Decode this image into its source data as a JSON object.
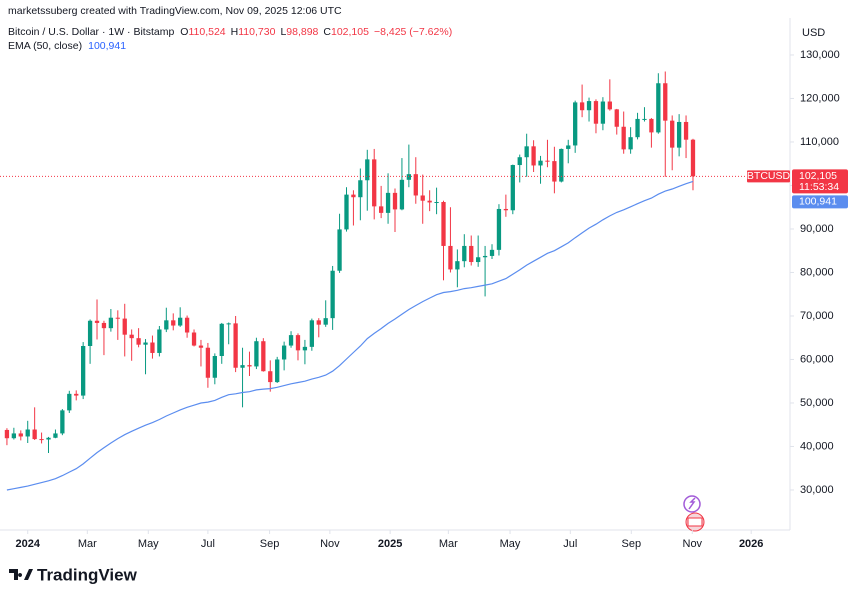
{
  "header": {
    "credit": "marketssuberg created with TradingView.com, Nov 09, 2025 12:06 UTC",
    "symbol": "Bitcoin / U.S. Dollar · 1W · Bitstamp",
    "ohlc": [
      {
        "key": "O",
        "label": "110,524"
      },
      {
        "key": "H",
        "label": "110,730"
      },
      {
        "key": "L",
        "label": "98,898"
      },
      {
        "key": "C",
        "label": "102,105"
      }
    ],
    "change": "−8,425 (−7.62%)",
    "indicator": "EMA (50, close)",
    "indicator_value": "100,941"
  },
  "logo": "TradingView",
  "chart_data": {
    "type": "candlestick",
    "currency": "USD",
    "ticker": "BTCUSD",
    "countdown": "11:53:34",
    "up_color": "#089981",
    "down_color": "#f23645",
    "grid": false,
    "xlim": [
      -1,
      113
    ],
    "xticks": [
      {
        "value": 3,
        "label": "2024"
      },
      {
        "value": 11.6,
        "label": "Mar"
      },
      {
        "value": 20.4,
        "label": "May"
      },
      {
        "value": 29,
        "label": "Jul"
      },
      {
        "value": 37.9,
        "label": "Sep"
      },
      {
        "value": 46.6,
        "label": "Nov"
      },
      {
        "value": 55.3,
        "label": "2025"
      },
      {
        "value": 63.7,
        "label": "Mar"
      },
      {
        "value": 72.6,
        "label": "May"
      },
      {
        "value": 81.3,
        "label": "Jul"
      },
      {
        "value": 90.1,
        "label": "Sep"
      },
      {
        "value": 98.9,
        "label": "Nov"
      },
      {
        "value": 107.4,
        "label": "2026"
      }
    ],
    "ylim": [
      20800,
      138500
    ],
    "yticks": [
      {
        "value": 30000,
        "label": "30,000"
      },
      {
        "value": 40000,
        "label": "40,000"
      },
      {
        "value": 50000,
        "label": "50,000"
      },
      {
        "value": 60000,
        "label": "60,000"
      },
      {
        "value": 70000,
        "label": "70,000"
      },
      {
        "value": 80000,
        "label": "80,000"
      },
      {
        "value": 90000,
        "label": "90,000"
      },
      {
        "value": 100000,
        "label": "100,000"
      },
      {
        "value": 110000,
        "label": "110,000"
      },
      {
        "value": 120000,
        "label": "120,000"
      },
      {
        "value": 130000,
        "label": "130,000"
      }
    ],
    "open": [
      43800,
      41900,
      43000,
      42300,
      43900,
      41700,
      41600,
      42000,
      43000,
      48300,
      52100,
      51700,
      63100,
      68900,
      68400,
      67200,
      69600,
      69400,
      65700,
      64900,
      63400,
      63900,
      61500,
      66900,
      69000,
      67800,
      69600,
      66200,
      63200,
      62700,
      55800,
      60800,
      68200,
      68300,
      58100,
      58700,
      58400,
      64200,
      57300,
      54800,
      60000,
      63200,
      65600,
      62100,
      62900,
      69000,
      68000,
      69500,
      80400,
      89900,
      97900,
      97300,
      101200,
      106000,
      95200,
      93700,
      98300,
      94500,
      101300,
      102600,
      97700,
      96500,
      96100,
      96200,
      86100,
      80700,
      82600,
      86100,
      82400,
      83500,
      83800,
      85200,
      94600,
      94300,
      104700,
      106500,
      109000,
      104600,
      105700,
      105600,
      100900,
      108400,
      109200,
      119100,
      117300,
      119400,
      114200,
      119300,
      117500,
      113500,
      108300,
      111100,
      115300,
      115300,
      112200,
      123500,
      114900,
      108700,
      114600,
      110524
    ],
    "high": [
      44200,
      44300,
      43700,
      45900,
      49000,
      43200,
      42200,
      43900,
      48600,
      52800,
      52900,
      64000,
      69200,
      73800,
      68900,
      71600,
      71300,
      72800,
      66900,
      67200,
      64700,
      65500,
      67700,
      71900,
      70600,
      72000,
      70100,
      66900,
      64500,
      63800,
      61400,
      68400,
      68500,
      70000,
      62700,
      61800,
      65000,
      64900,
      59800,
      60600,
      64100,
      66500,
      66000,
      64500,
      69400,
      69500,
      73600,
      81500,
      93500,
      99600,
      98900,
      103900,
      108200,
      108400,
      99900,
      102800,
      99300,
      106300,
      109400,
      106500,
      102500,
      98900,
      99500,
      96500,
      95000,
      85300,
      88800,
      88500,
      88500,
      86100,
      86500,
      95700,
      97900,
      104800,
      107100,
      111900,
      110400,
      106800,
      110500,
      108900,
      108500,
      110500,
      119500,
      123200,
      120200,
      119800,
      120300,
      124400,
      117600,
      117000,
      113400,
      116700,
      118000,
      115500,
      125800,
      126200,
      116100,
      116400,
      116100,
      110730
    ],
    "low": [
      40300,
      41600,
      41400,
      40800,
      41500,
      40700,
      38500,
      41900,
      42600,
      47700,
      50600,
      50900,
      59000,
      64600,
      61000,
      66400,
      64500,
      60700,
      59700,
      62800,
      56600,
      60200,
      60700,
      66300,
      66700,
      67500,
      65000,
      63000,
      58400,
      53500,
      54300,
      59000,
      63500,
      57100,
      49000,
      56200,
      57800,
      57200,
      52600,
      54600,
      57500,
      62700,
      59800,
      58900,
      62000,
      65100,
      67500,
      66800,
      79900,
      89400,
      90800,
      92000,
      94200,
      92200,
      92500,
      91200,
      89300,
      94300,
      99600,
      95800,
      91200,
      94100,
      93400,
      78200,
      80000,
      76600,
      81200,
      81600,
      81300,
      74500,
      83100,
      83900,
      92800,
      93400,
      100700,
      102000,
      103100,
      100400,
      104200,
      98200,
      100700,
      105100,
      107500,
      115700,
      114700,
      112000,
      112700,
      117200,
      111700,
      107300,
      107300,
      110600,
      114700,
      108700,
      111900,
      102000,
      103500,
      106700,
      106300,
      98898
    ],
    "close": [
      41900,
      43000,
      42300,
      43900,
      41700,
      41600,
      42000,
      43000,
      48300,
      52100,
      51700,
      63100,
      68900,
      68400,
      67200,
      69600,
      69400,
      65700,
      64900,
      63400,
      63900,
      61500,
      66900,
      69000,
      67800,
      69600,
      66200,
      63200,
      62700,
      55800,
      60800,
      68200,
      68300,
      58100,
      58700,
      58400,
      64200,
      57300,
      54800,
      60000,
      63200,
      65600,
      62100,
      62900,
      69000,
      68000,
      69500,
      80400,
      89900,
      97900,
      97300,
      101200,
      106000,
      95200,
      93700,
      98300,
      94500,
      101300,
      102600,
      97700,
      96500,
      96100,
      96200,
      86100,
      80700,
      82600,
      86100,
      82400,
      83500,
      83800,
      85200,
      94600,
      94300,
      104700,
      106500,
      109000,
      104600,
      105700,
      105600,
      100900,
      108400,
      109200,
      119100,
      117300,
      119400,
      114200,
      119300,
      117500,
      113500,
      108300,
      111100,
      115300,
      115300,
      112200,
      123500,
      114900,
      108700,
      114600,
      110524,
      102105
    ],
    "ema": {
      "name": "EMA (50, close)",
      "color": "#5b8def",
      "values": [
        30000,
        30300,
        30600,
        30900,
        31300,
        31700,
        32100,
        32600,
        33300,
        34100,
        34900,
        36000,
        37300,
        38600,
        39700,
        40800,
        41800,
        42700,
        43500,
        44200,
        44900,
        45500,
        46200,
        47000,
        47700,
        48400,
        49000,
        49500,
        50000,
        50200,
        50600,
        51300,
        51900,
        52100,
        52400,
        52600,
        53000,
        53200,
        53300,
        53600,
        54000,
        54400,
        54700,
        55000,
        55500,
        55900,
        56400,
        57300,
        58600,
        60100,
        61600,
        63100,
        64800,
        66000,
        67100,
        68300,
        69300,
        70400,
        71500,
        72400,
        73300,
        74100,
        74900,
        75400,
        75600,
        75900,
        76300,
        76500,
        76800,
        77100,
        77400,
        78000,
        78600,
        79600,
        80600,
        81700,
        82600,
        83500,
        84400,
        85000,
        85900,
        86800,
        88000,
        89100,
        90200,
        91100,
        92100,
        93000,
        93800,
        94400,
        95100,
        95800,
        96500,
        97100,
        98000,
        98700,
        99200,
        99800,
        100400,
        100941
      ]
    }
  }
}
